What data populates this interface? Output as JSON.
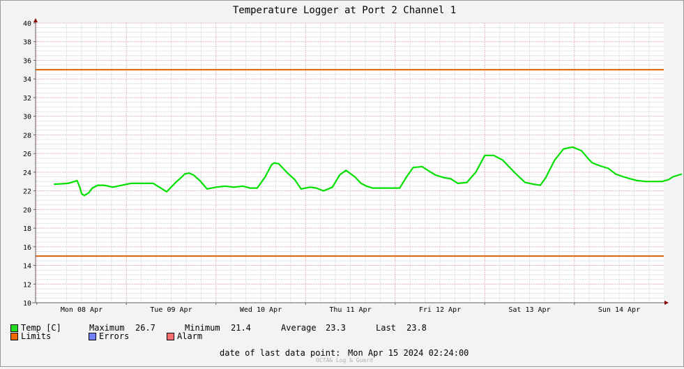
{
  "chart_data": {
    "type": "line",
    "title": "Temperature Logger at Port 2 Channel 1",
    "xlabel": "",
    "ylabel": "",
    "ylim": [
      10,
      40
    ],
    "yticks": [
      10,
      12,
      14,
      16,
      18,
      20,
      22,
      24,
      26,
      28,
      30,
      32,
      34,
      36,
      38,
      40
    ],
    "x_tick_labels": [
      "Mon 08 Apr",
      "Tue 09 Apr",
      "Wed 10 Apr",
      "Thu 11 Apr",
      "Fri 12 Apr",
      "Sat 13 Apr",
      "Sun 14 Apr"
    ],
    "x_unit": "days from 2024-04-08 00:00",
    "xlim": [
      -0.31,
      6.72
    ],
    "grid": true,
    "series": [
      {
        "name": "Temp [C]",
        "color": "#00e000",
        "x": [
          -0.31,
          -0.15,
          -0.05,
          -0.02,
          0.0,
          0.03,
          0.08,
          0.12,
          0.18,
          0.25,
          0.35,
          0.45,
          0.5,
          0.55,
          0.65,
          0.8,
          0.95,
          1.05,
          1.12,
          1.15,
          1.2,
          1.25,
          1.32,
          1.4,
          1.5,
          1.6,
          1.7,
          1.8,
          1.88,
          1.96,
          2.05,
          2.12,
          2.15,
          2.2,
          2.3,
          2.38,
          2.45,
          2.55,
          2.62,
          2.7,
          2.8,
          2.88,
          2.95,
          3.05,
          3.12,
          3.18,
          3.25,
          3.35,
          3.45,
          3.55,
          3.62,
          3.7,
          3.8,
          3.88,
          3.95,
          4.05,
          4.12,
          4.2,
          4.3,
          4.4,
          4.5,
          4.6,
          4.7,
          4.78,
          4.85,
          4.95,
          5.05,
          5.12,
          5.18,
          5.28,
          5.38,
          5.48,
          5.58,
          5.65,
          5.7,
          5.78,
          5.88,
          5.96,
          6.05,
          6.12,
          6.2,
          6.3,
          6.4,
          6.48,
          6.55,
          6.6,
          6.7
        ],
        "y": [
          22.7,
          22.8,
          23.1,
          22.4,
          21.7,
          21.5,
          21.8,
          22.3,
          22.6,
          22.6,
          22.4,
          22.6,
          22.7,
          22.8,
          22.8,
          22.8,
          21.9,
          22.9,
          23.5,
          23.8,
          23.9,
          23.7,
          23.1,
          22.2,
          22.4,
          22.5,
          22.4,
          22.5,
          22.3,
          22.3,
          23.5,
          24.8,
          25.0,
          24.9,
          23.9,
          23.2,
          22.2,
          22.4,
          22.3,
          22.0,
          22.4,
          23.7,
          24.2,
          23.5,
          22.8,
          22.5,
          22.3,
          22.3,
          22.3,
          22.3,
          23.4,
          24.5,
          24.6,
          24.1,
          23.7,
          23.4,
          23.3,
          22.8,
          22.9,
          24.0,
          25.8,
          25.8,
          25.3,
          24.5,
          23.8,
          22.9,
          22.7,
          22.6,
          23.4,
          25.3,
          26.5,
          26.7,
          26.3,
          25.5,
          25.0,
          24.7,
          24.4,
          23.8,
          23.5,
          23.3,
          23.1,
          23.0,
          23.0,
          23.0,
          23.2,
          23.5,
          23.8
        ]
      },
      {
        "name": "Limits",
        "color": "#e06000",
        "y": [
          35,
          15
        ]
      }
    ]
  },
  "legend": {
    "temp_label": "Temp [C]",
    "maximum_label": "Maximum",
    "maximum_value": "26.7",
    "minimum_label": "Minimum",
    "minimum_value": "21.4",
    "average_label": "Average",
    "average_value": "23.3",
    "last_label": "Last",
    "last_value": "23.8",
    "limits_label": "Limits",
    "errors_label": "Errors",
    "alarm_label": "Alarm",
    "temp_color": "#22dd22",
    "limits_color": "#ee6a00",
    "errors_color": "#7080ff",
    "alarm_color": "#ff7070"
  },
  "footer": {
    "last_point_label": "date of last data point:",
    "last_point_value": "Mon Apr 15 2024 02:24:00",
    "watermark": "OCTA& Log & Guard"
  }
}
